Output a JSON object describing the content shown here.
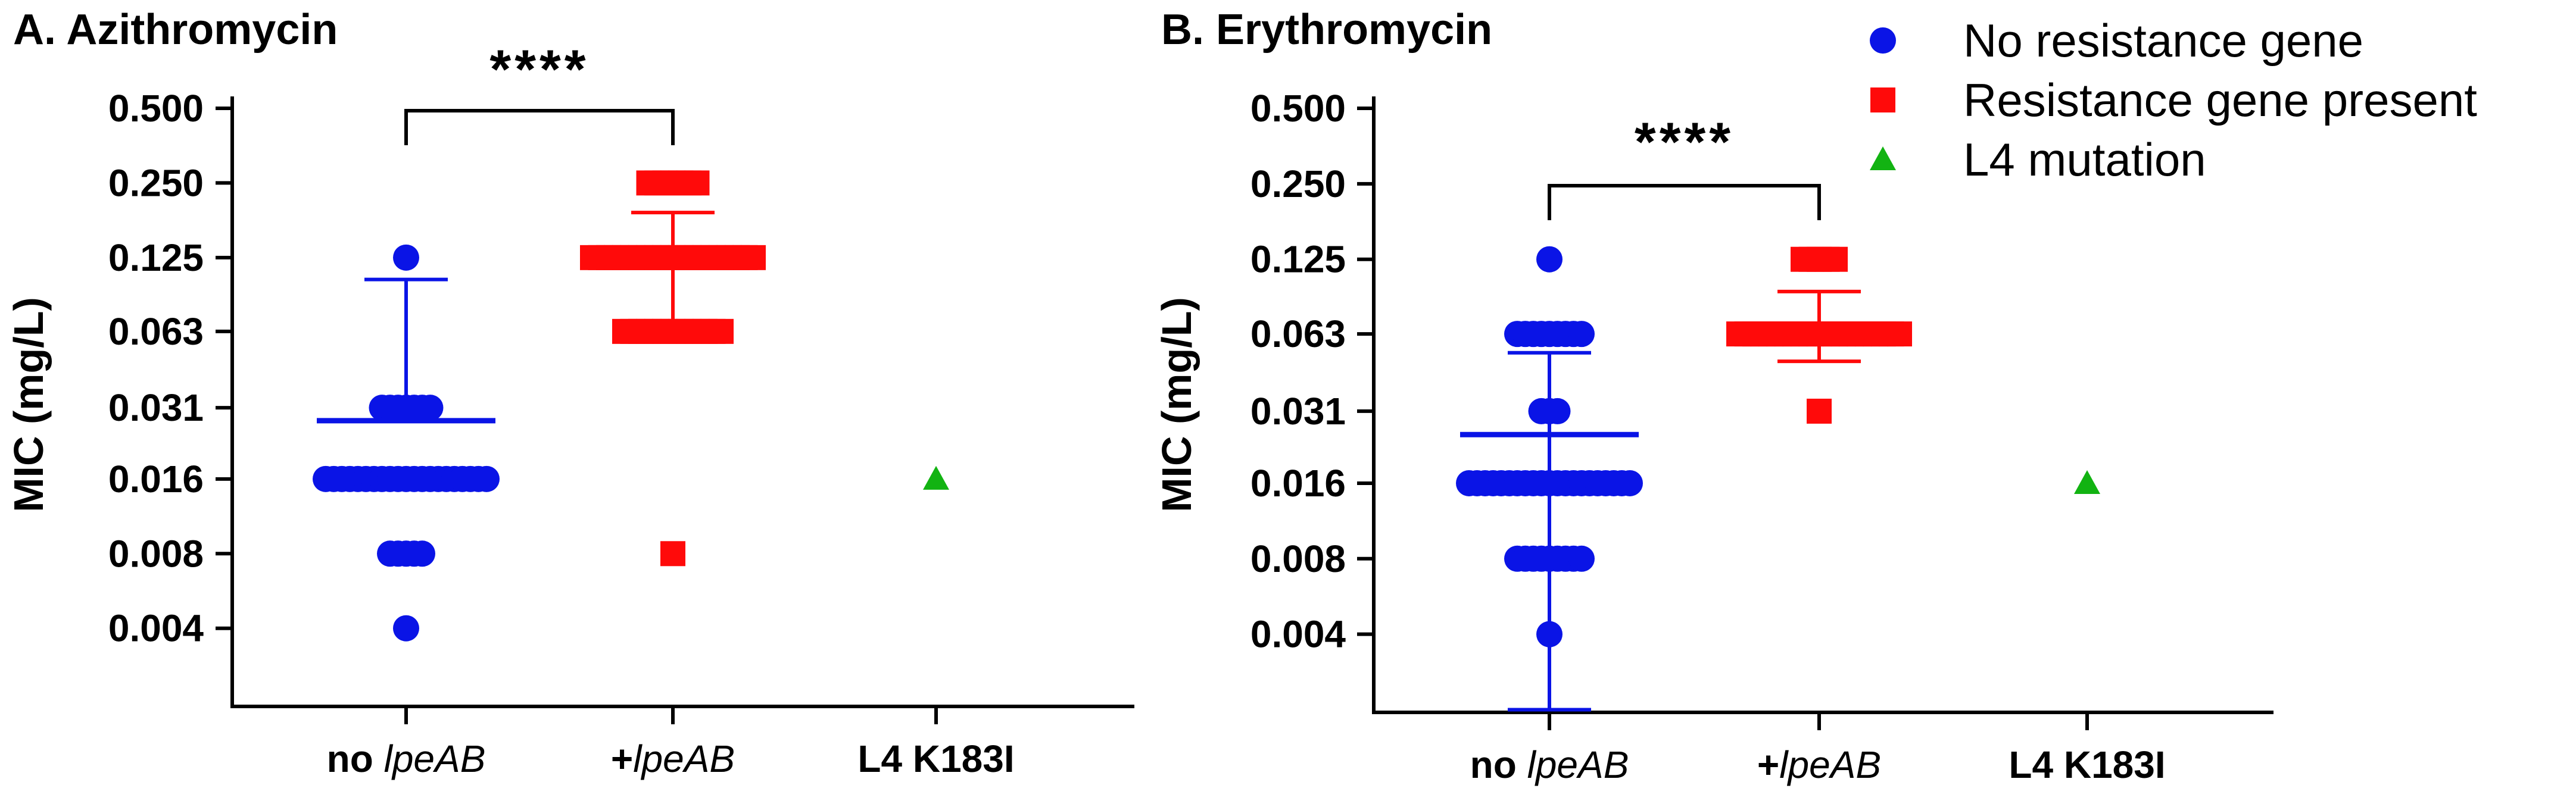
{
  "chart_data": [
    {
      "type": "scatter",
      "title": "A. Azithromycin",
      "ylabel": "MIC (mg/L)",
      "yscale": "log2",
      "ylim": [
        0.002,
        0.5
      ],
      "yticks": [
        0.004,
        0.008,
        0.016,
        0.031,
        0.063,
        0.125,
        0.25,
        0.5
      ],
      "ytick_labels": [
        "0.004",
        "0.008",
        "0.016",
        "0.031",
        "0.063",
        "0.125",
        "0.250",
        "0.500"
      ],
      "categories": [
        {
          "prefix": "no ",
          "italic": "lpeAB",
          "suffix": ""
        },
        {
          "prefix": "+",
          "italic": "lpeAB",
          "suffix": ""
        },
        {
          "prefix": "L4 K183I",
          "italic": "",
          "suffix": ""
        }
      ],
      "series": [
        {
          "name": "No resistance gene",
          "category": 0,
          "color": "#0a14e6",
          "marker": "circle",
          "points": [
            {
              "y": 0.125,
              "n": 1
            },
            {
              "y": 0.031,
              "n": 7
            },
            {
              "y": 0.016,
              "n": 21
            },
            {
              "y": 0.008,
              "n": 5
            },
            {
              "y": 0.004,
              "n": 1
            }
          ],
          "mean": 0.0275,
          "err_upper": 0.102,
          "err_lower": 0.0275
        },
        {
          "name": "Resistance gene present",
          "category": 1,
          "color": "#ff0a0a",
          "marker": "square",
          "points": [
            {
              "y": 0.25,
              "n": 7
            },
            {
              "y": 0.125,
              "n": 21
            },
            {
              "y": 0.063,
              "n": 13
            },
            {
              "y": 0.008,
              "n": 1
            }
          ],
          "mean": 0.125,
          "err_upper": 0.19,
          "err_lower": 0.063
        },
        {
          "name": "L4 mutation",
          "category": 2,
          "color": "#12b312",
          "marker": "triangle",
          "points": [
            {
              "y": 0.016,
              "n": 1
            }
          ]
        }
      ],
      "significance": {
        "from": 0,
        "to": 1,
        "label": "****"
      }
    },
    {
      "type": "scatter",
      "title": "B. Erythromycin",
      "ylabel": "MIC (mg/L)",
      "yscale": "log2",
      "ylim": [
        0.002,
        0.5
      ],
      "yticks": [
        0.004,
        0.008,
        0.016,
        0.031,
        0.063,
        0.125,
        0.25,
        0.5
      ],
      "ytick_labels": [
        "0.004",
        "0.008",
        "0.016",
        "0.031",
        "0.063",
        "0.125",
        "0.250",
        "0.500"
      ],
      "categories": [
        {
          "prefix": "no ",
          "italic": "lpeAB",
          "suffix": ""
        },
        {
          "prefix": "+",
          "italic": "lpeAB",
          "suffix": ""
        },
        {
          "prefix": "L4 K183I",
          "italic": "",
          "suffix": ""
        }
      ],
      "series": [
        {
          "name": "No resistance gene",
          "category": 0,
          "color": "#0a14e6",
          "marker": "circle",
          "points": [
            {
              "y": 0.125,
              "n": 1
            },
            {
              "y": 0.063,
              "n": 9
            },
            {
              "y": 0.031,
              "n": 3
            },
            {
              "y": 0.016,
              "n": 21
            },
            {
              "y": 0.008,
              "n": 9
            },
            {
              "y": 0.004,
              "n": 1
            }
          ],
          "mean": 0.025,
          "err_upper": 0.053,
          "err_lower": 0.002
        },
        {
          "name": "Resistance gene present",
          "category": 1,
          "color": "#ff0a0a",
          "marker": "square",
          "points": [
            {
              "y": 0.125,
              "n": 5
            },
            {
              "y": 0.063,
              "n": 21
            },
            {
              "y": 0.031,
              "n": 1
            }
          ],
          "mean": 0.063,
          "err_upper": 0.093,
          "err_lower": 0.049
        },
        {
          "name": "L4 mutation",
          "category": 2,
          "color": "#12b312",
          "marker": "triangle",
          "points": [
            {
              "y": 0.016,
              "n": 1
            }
          ]
        }
      ],
      "significance": {
        "from": 0,
        "to": 1,
        "label": "****"
      }
    }
  ],
  "legend": {
    "position": "top-right",
    "items": [
      {
        "label": "No resistance gene",
        "color": "#0a14e6",
        "marker": "circle"
      },
      {
        "label": "Resistance gene present",
        "color": "#ff0a0a",
        "marker": "square"
      },
      {
        "label": "L4 mutation",
        "color": "#12b312",
        "marker": "triangle"
      }
    ]
  }
}
